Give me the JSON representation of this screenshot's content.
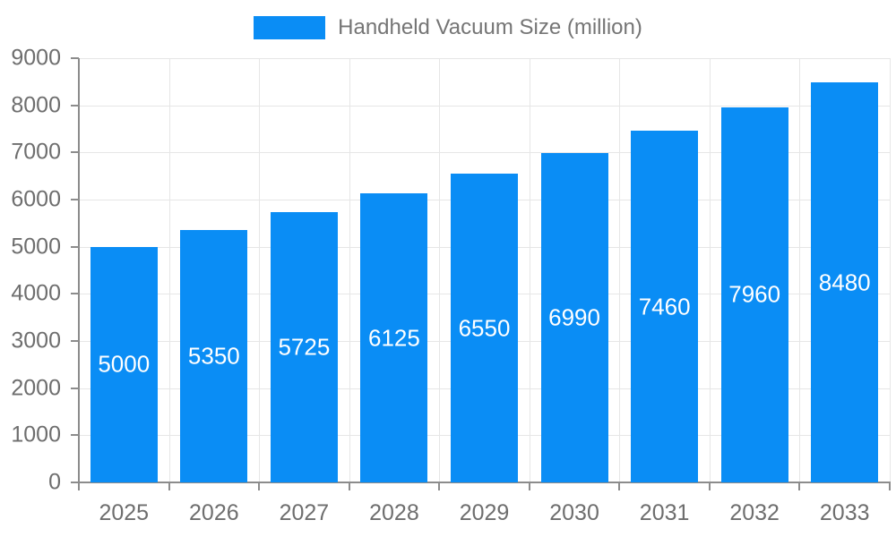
{
  "chart_data": {
    "type": "bar",
    "title": "",
    "legend": "Handheld Vacuum Size (million)",
    "legend_position": "top-center",
    "series_name": "Handheld Vacuum Size (million)",
    "categories": [
      "2025",
      "2026",
      "2027",
      "2028",
      "2029",
      "2030",
      "2031",
      "2032",
      "2033"
    ],
    "values": [
      5000,
      5350,
      5725,
      6125,
      6550,
      6990,
      7460,
      7960,
      8480
    ],
    "bar_labels": [
      "5000",
      "5350",
      "5725",
      "6125",
      "6550",
      "6990",
      "7460",
      "7960",
      "8480"
    ],
    "bar_label_position": "inside-center",
    "xlabel": "",
    "ylabel": "",
    "ylim": [
      0,
      9000
    ],
    "ytick_step": 1000,
    "yticks": [
      0,
      1000,
      2000,
      3000,
      4000,
      5000,
      6000,
      7000,
      8000,
      9000
    ],
    "grid": "both",
    "colors": {
      "bar": "#0A8DF5",
      "bar_label": "#FFFFFF",
      "axis_line": "#8C8C8C",
      "tick_mark": "#8C8C8C",
      "gridline": "#E6E6E6",
      "tick_label": "#6E6E6E",
      "legend_text": "#757575",
      "background": "#FFFFFF"
    }
  }
}
